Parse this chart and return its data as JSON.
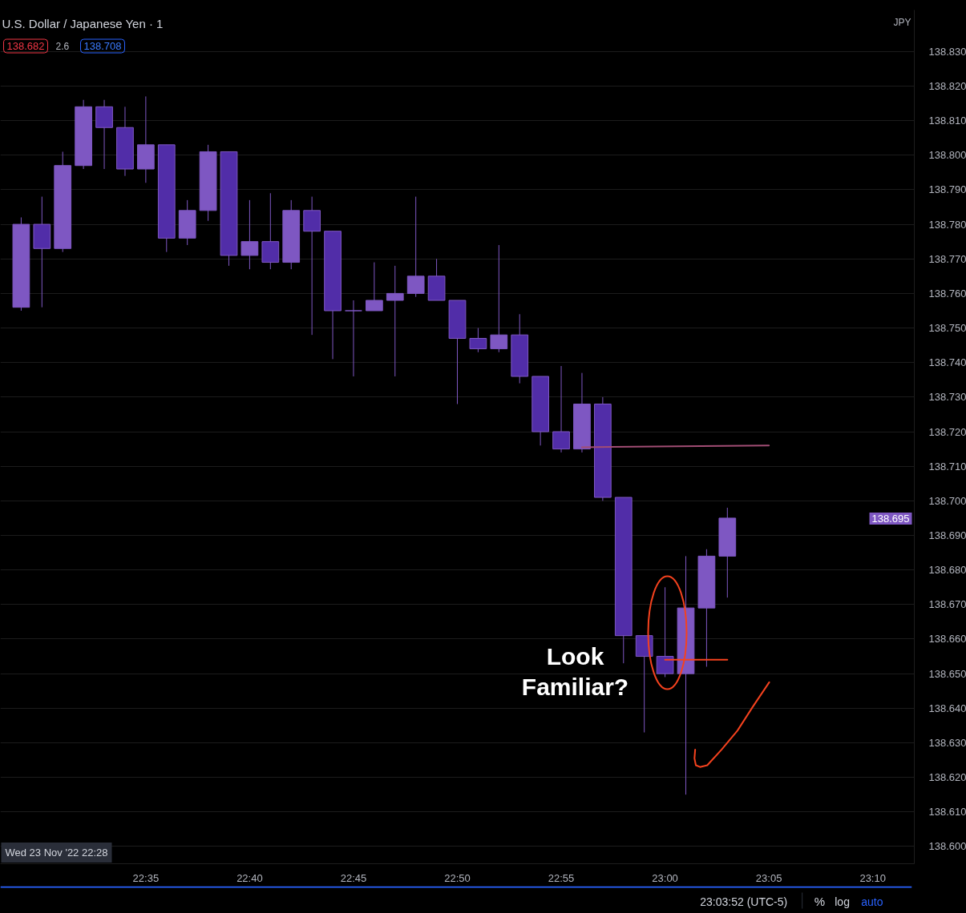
{
  "chart_data": {
    "type": "candlestick",
    "title": "U.S. Dollar / Japanese Yen · 1",
    "ylabel": "JPY",
    "x": [
      "2022-11-23T22:29",
      "2022-11-23T22:30",
      "2022-11-23T22:31",
      "2022-11-23T22:32",
      "2022-11-23T22:33",
      "2022-11-23T22:34",
      "2022-11-23T22:35",
      "2022-11-23T22:36",
      "2022-11-23T22:37",
      "2022-11-23T22:38",
      "2022-11-23T22:39",
      "2022-11-23T22:40",
      "2022-11-23T22:41",
      "2022-11-23T22:42",
      "2022-11-23T22:43",
      "2022-11-23T22:44",
      "2022-11-23T22:45",
      "2022-11-23T22:46",
      "2022-11-23T22:47",
      "2022-11-23T22:48",
      "2022-11-23T22:49",
      "2022-11-23T22:50",
      "2022-11-23T22:51",
      "2022-11-23T22:52",
      "2022-11-23T22:53",
      "2022-11-23T22:54",
      "2022-11-23T22:55",
      "2022-11-23T22:56",
      "2022-11-23T22:57",
      "2022-11-23T22:58",
      "2022-11-23T22:59",
      "2022-11-23T23:00",
      "2022-11-23T23:01",
      "2022-11-23T23:02",
      "2022-11-23T23:03"
    ],
    "ohlc": [
      [
        138.756,
        138.782,
        138.755,
        138.78
      ],
      [
        138.78,
        138.788,
        138.756,
        138.773
      ],
      [
        138.773,
        138.801,
        138.772,
        138.797
      ],
      [
        138.797,
        138.816,
        138.796,
        138.814
      ],
      [
        138.814,
        138.816,
        138.796,
        138.808
      ],
      [
        138.808,
        138.814,
        138.794,
        138.796
      ],
      [
        138.796,
        138.817,
        138.792,
        138.803
      ],
      [
        138.803,
        138.803,
        138.772,
        138.776
      ],
      [
        138.776,
        138.787,
        138.774,
        138.784
      ],
      [
        138.784,
        138.803,
        138.781,
        138.801
      ],
      [
        138.801,
        138.801,
        138.768,
        138.771
      ],
      [
        138.771,
        138.787,
        138.767,
        138.775
      ],
      [
        138.775,
        138.789,
        138.767,
        138.769
      ],
      [
        138.769,
        138.787,
        138.767,
        138.784
      ],
      [
        138.784,
        138.788,
        138.748,
        138.778
      ],
      [
        138.778,
        138.778,
        138.741,
        138.755
      ],
      [
        138.755,
        138.758,
        138.736,
        138.755
      ],
      [
        138.755,
        138.769,
        138.755,
        138.758
      ],
      [
        138.758,
        138.768,
        138.736,
        138.76
      ],
      [
        138.76,
        138.788,
        138.759,
        138.765
      ],
      [
        138.765,
        138.77,
        138.758,
        138.758
      ],
      [
        138.758,
        138.758,
        138.728,
        138.747
      ],
      [
        138.747,
        138.75,
        138.743,
        138.744
      ],
      [
        138.744,
        138.774,
        138.743,
        138.748
      ],
      [
        138.748,
        138.754,
        138.734,
        138.736
      ],
      [
        138.736,
        138.736,
        138.716,
        138.72
      ],
      [
        138.72,
        138.739,
        138.714,
        138.715
      ],
      [
        138.715,
        138.737,
        138.714,
        138.728
      ],
      [
        138.728,
        138.73,
        138.7,
        138.701
      ],
      [
        138.701,
        138.701,
        138.653,
        138.661
      ],
      [
        138.661,
        138.661,
        138.633,
        138.655
      ],
      [
        138.655,
        138.675,
        138.649,
        138.65
      ],
      [
        138.65,
        138.684,
        138.615,
        138.669
      ],
      [
        138.669,
        138.686,
        138.652,
        138.684
      ],
      [
        138.684,
        138.698,
        138.672,
        138.695
      ]
    ],
    "color": "#7e57c2",
    "colors": [
      "#7e57c2",
      "#512da8",
      "#7e57c2",
      "#7e57c2",
      "#512da8",
      "#512da8",
      "#7e57c2",
      "#512da8",
      "#7e57c2",
      "#7e57c2",
      "#512da8",
      "#7e57c2",
      "#512da8",
      "#7e57c2",
      "#512da8",
      "#512da8",
      "#7e57c2",
      "#7e57c2",
      "#7e57c2",
      "#7e57c2",
      "#512da8",
      "#512da8",
      "#512da8",
      "#7e57c2",
      "#512da8",
      "#512da8",
      "#512da8",
      "#7e57c2",
      "#512da8",
      "#512da8",
      "#512da8",
      "#512da8",
      "#7e57c2",
      "#7e57c2",
      "#7e57c2"
    ],
    "series": [
      {
        "type": "line",
        "x": [
          "2022-11-23T22:56",
          "2022-11-23T23:05"
        ],
        "values": [
          138.7155,
          138.716
        ],
        "color": "#a14d74"
      },
      {
        "type": "line",
        "x": [
          "2022-11-23T23:00",
          "2022-11-23T23:03"
        ],
        "values": [
          138.654,
          138.654
        ],
        "color": "#f5421e"
      },
      {
        "type": "line",
        "x": [
          "2022-11-23T23:01:27",
          "2022-11-23T23:01:25",
          "2022-11-23T23:01:29",
          "2022-11-23T23:01:41",
          "2022-11-23T23:02:02",
          "2022-11-23T23:02:43",
          "2022-11-23T23:03:29",
          "2022-11-23T23:04:14",
          "2022-11-23T23:05:01"
        ],
        "values": [
          138.628,
          138.6255,
          138.6235,
          138.623,
          138.6235,
          138.628,
          138.6335,
          138.6405,
          138.6475
        ],
        "color": "#f5421e"
      }
    ],
    "xlim": [
      "2022-11-23T22:28",
      "2022-11-23T23:12"
    ],
    "xticks": [
      {
        "value": "2022-11-23T22:35",
        "label": "22:35"
      },
      {
        "value": "2022-11-23T22:40",
        "label": "22:40"
      },
      {
        "value": "2022-11-23T22:45",
        "label": "22:45"
      },
      {
        "value": "2022-11-23T22:50",
        "label": "22:50"
      },
      {
        "value": "2022-11-23T22:55",
        "label": "22:55"
      },
      {
        "value": "2022-11-23T23:00",
        "label": "23:00"
      },
      {
        "value": "2022-11-23T23:05",
        "label": "23:05"
      },
      {
        "value": "2022-11-23T23:10",
        "label": "23:10"
      }
    ],
    "ylim": [
      138.595,
      138.842
    ],
    "yticks": [
      {
        "value": 138.6,
        "label": "138.600"
      },
      {
        "value": 138.61,
        "label": "138.610"
      },
      {
        "value": 138.62,
        "label": "138.620"
      },
      {
        "value": 138.63,
        "label": "138.630"
      },
      {
        "value": 138.64,
        "label": "138.640"
      },
      {
        "value": 138.65,
        "label": "138.650"
      },
      {
        "value": 138.66,
        "label": "138.660"
      },
      {
        "value": 138.67,
        "label": "138.670"
      },
      {
        "value": 138.68,
        "label": "138.680"
      },
      {
        "value": 138.69,
        "label": "138.690"
      },
      {
        "value": 138.7,
        "label": "138.700"
      },
      {
        "value": 138.71,
        "label": "138.710"
      },
      {
        "value": 138.72,
        "label": "138.720"
      },
      {
        "value": 138.73,
        "label": "138.730"
      },
      {
        "value": 138.74,
        "label": "138.740"
      },
      {
        "value": 138.75,
        "label": "138.750"
      },
      {
        "value": 138.76,
        "label": "138.760"
      },
      {
        "value": 138.77,
        "label": "138.770"
      },
      {
        "value": 138.78,
        "label": "138.780"
      },
      {
        "value": 138.79,
        "label": "138.790"
      },
      {
        "value": 138.8,
        "label": "138.800"
      },
      {
        "value": 138.81,
        "label": "138.810"
      },
      {
        "value": 138.82,
        "label": "138.820"
      },
      {
        "value": 138.83,
        "label": "138.830"
      }
    ],
    "grid": "y",
    "annotations": [
      "138.682",
      "2.6",
      "138.708",
      "Wed 23 Nov '22 22:28",
      "23:03:52 (UTC-5)",
      "%",
      "log",
      "auto",
      "Look\nFamiliar?",
      "138.695"
    ]
  }
}
